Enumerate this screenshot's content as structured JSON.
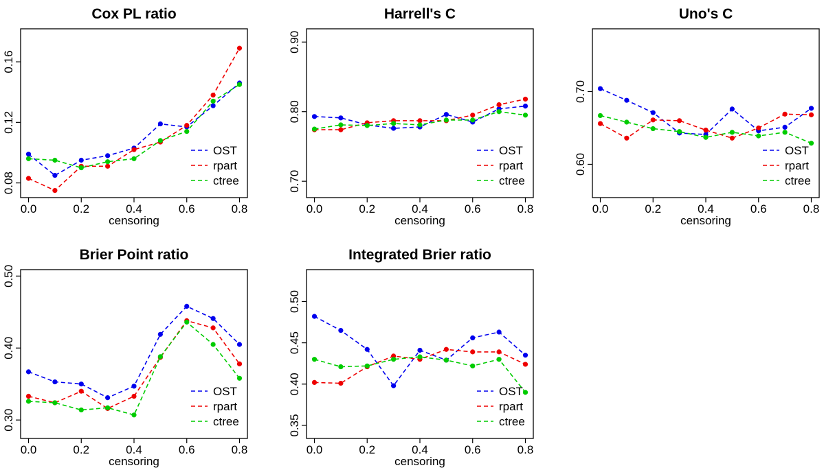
{
  "colors": {
    "OST": "#0000ee",
    "rpart": "#ee0000",
    "ctree": "#00cc00"
  },
  "chart_data": [
    {
      "type": "line",
      "title": "Cox PL ratio",
      "xlabel": "censoring",
      "ylabel": "",
      "x": [
        0.0,
        0.1,
        0.2,
        0.3,
        0.4,
        0.5,
        0.6,
        0.7,
        0.8
      ],
      "xticks": [
        "0.0",
        "0.2",
        "0.4",
        "0.6",
        "0.8"
      ],
      "xtick_values": [
        0.0,
        0.2,
        0.4,
        0.6,
        0.8
      ],
      "yticks": [
        "0.08",
        "0.12",
        "0.16"
      ],
      "ytick_values": [
        0.08,
        0.12,
        0.16
      ],
      "xlim": [
        -0.03,
        0.83
      ],
      "ylim": [
        0.0703,
        0.1818
      ],
      "grid": false,
      "legend": "bottom-right",
      "series": [
        {
          "name": "OST",
          "values": [
            0.099,
            0.085,
            0.095,
            0.098,
            0.103,
            0.119,
            0.117,
            0.131,
            0.146
          ]
        },
        {
          "name": "rpart",
          "values": [
            0.083,
            0.075,
            0.091,
            0.091,
            0.102,
            0.107,
            0.118,
            0.138,
            0.169
          ]
        },
        {
          "name": "ctree",
          "values": [
            0.096,
            0.095,
            0.09,
            0.094,
            0.096,
            0.108,
            0.114,
            0.134,
            0.145
          ]
        }
      ]
    },
    {
      "type": "line",
      "title": "Harrell's C",
      "xlabel": "censoring",
      "ylabel": "",
      "x": [
        0.0,
        0.1,
        0.2,
        0.3,
        0.4,
        0.5,
        0.6,
        0.7,
        0.8
      ],
      "xticks": [
        "0.0",
        "0.2",
        "0.4",
        "0.6",
        "0.8"
      ],
      "xtick_values": [
        0.0,
        0.2,
        0.4,
        0.6,
        0.8
      ],
      "yticks": [
        "0.70",
        "0.80",
        "0.90"
      ],
      "ytick_values": [
        0.7,
        0.8,
        0.9
      ],
      "xlim": [
        -0.03,
        0.83
      ],
      "ylim": [
        0.6765,
        0.919
      ],
      "grid": false,
      "legend": "bottom-right",
      "series": [
        {
          "name": "OST",
          "values": [
            0.793,
            0.791,
            0.781,
            0.776,
            0.778,
            0.796,
            0.785,
            0.804,
            0.808
          ]
        },
        {
          "name": "rpart",
          "values": [
            0.774,
            0.774,
            0.784,
            0.787,
            0.787,
            0.787,
            0.795,
            0.81,
            0.818
          ]
        },
        {
          "name": "ctree",
          "values": [
            0.775,
            0.781,
            0.78,
            0.783,
            0.781,
            0.788,
            0.788,
            0.8,
            0.795
          ]
        }
      ]
    },
    {
      "type": "line",
      "title": "Uno's C",
      "xlabel": "censoring",
      "ylabel": "",
      "x": [
        0.0,
        0.1,
        0.2,
        0.3,
        0.4,
        0.5,
        0.6,
        0.7,
        0.8
      ],
      "xticks": [
        "0.0",
        "0.2",
        "0.4",
        "0.6",
        "0.8"
      ],
      "xtick_values": [
        0.0,
        0.2,
        0.4,
        0.6,
        0.8
      ],
      "yticks": [
        "0.60",
        "0.70"
      ],
      "ytick_values": [
        0.6,
        0.7
      ],
      "xlim": [
        -0.03,
        0.83
      ],
      "ylim": [
        0.5542,
        0.7863
      ],
      "grid": false,
      "legend": "bottom-right",
      "series": [
        {
          "name": "OST",
          "values": [
            0.704,
            0.688,
            0.671,
            0.643,
            0.641,
            0.676,
            0.646,
            0.651,
            0.677
          ]
        },
        {
          "name": "rpart",
          "values": [
            0.656,
            0.636,
            0.661,
            0.66,
            0.647,
            0.636,
            0.65,
            0.669,
            0.668
          ]
        },
        {
          "name": "ctree",
          "values": [
            0.667,
            0.658,
            0.649,
            0.645,
            0.637,
            0.644,
            0.639,
            0.644,
            0.629
          ]
        }
      ]
    },
    {
      "type": "line",
      "title": "Brier Point ratio",
      "xlabel": "censoring",
      "ylabel": "",
      "x": [
        0.0,
        0.1,
        0.2,
        0.3,
        0.4,
        0.5,
        0.6,
        0.7,
        0.8
      ],
      "xticks": [
        "0.0",
        "0.2",
        "0.4",
        "0.6",
        "0.8"
      ],
      "xtick_values": [
        0.0,
        0.2,
        0.4,
        0.6,
        0.8
      ],
      "yticks": [
        "0.30",
        "0.40",
        "0.50"
      ],
      "ytick_values": [
        0.3,
        0.4,
        0.5
      ],
      "xlim": [
        -0.03,
        0.83
      ],
      "ylim": [
        0.2744,
        0.5089
      ],
      "grid": false,
      "legend": "bottom-right",
      "series": [
        {
          "name": "OST",
          "values": [
            0.367,
            0.353,
            0.35,
            0.331,
            0.347,
            0.419,
            0.458,
            0.441,
            0.405
          ]
        },
        {
          "name": "rpart",
          "values": [
            0.333,
            0.324,
            0.34,
            0.316,
            0.333,
            0.387,
            0.438,
            0.428,
            0.378
          ]
        },
        {
          "name": "ctree",
          "values": [
            0.326,
            0.324,
            0.314,
            0.317,
            0.307,
            0.388,
            0.436,
            0.405,
            0.358
          ]
        }
      ]
    },
    {
      "type": "line",
      "title": "Integrated Brier ratio",
      "xlabel": "censoring",
      "ylabel": "",
      "x": [
        0.0,
        0.1,
        0.2,
        0.3,
        0.4,
        0.5,
        0.6,
        0.7,
        0.8
      ],
      "xticks": [
        "0.0",
        "0.2",
        "0.4",
        "0.6",
        "0.8"
      ],
      "xtick_values": [
        0.0,
        0.2,
        0.4,
        0.6,
        0.8
      ],
      "yticks": [
        "0.35",
        "0.40",
        "0.45",
        "0.50"
      ],
      "ytick_values": [
        0.35,
        0.4,
        0.45,
        0.5
      ],
      "xlim": [
        -0.03,
        0.83
      ],
      "ylim": [
        0.3342,
        0.5386
      ],
      "grid": false,
      "legend": "bottom-right",
      "series": [
        {
          "name": "OST",
          "values": [
            0.482,
            0.465,
            0.442,
            0.398,
            0.441,
            0.429,
            0.456,
            0.463,
            0.435
          ]
        },
        {
          "name": "rpart",
          "values": [
            0.402,
            0.401,
            0.421,
            0.434,
            0.43,
            0.442,
            0.439,
            0.439,
            0.424
          ]
        },
        {
          "name": "ctree",
          "values": [
            0.43,
            0.421,
            0.422,
            0.43,
            0.433,
            0.429,
            0.422,
            0.43,
            0.39
          ]
        }
      ]
    }
  ]
}
